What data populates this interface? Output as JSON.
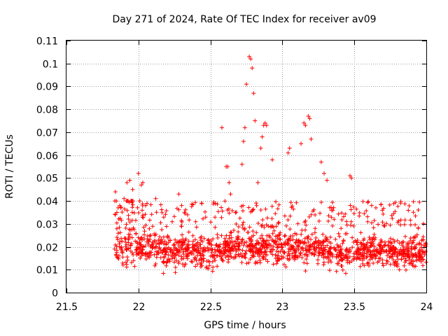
{
  "chart_data": {
    "type": "scatter",
    "title": "Day 271 of 2024, Rate Of TEC Index for receiver av09",
    "xlabel": "GPS time / hours",
    "ylabel": "ROTI / TECUs",
    "xlim": [
      21.5,
      24
    ],
    "ylim": [
      0,
      0.11
    ],
    "xticks": [
      21.5,
      22,
      22.5,
      23,
      23.5,
      24
    ],
    "xtick_labels": [
      "21.5",
      "22",
      "22.5",
      "23",
      "23.5",
      "24"
    ],
    "yticks": [
      0,
      0.01,
      0.02,
      0.03,
      0.04,
      0.05,
      0.06,
      0.07,
      0.08,
      0.09,
      0.1,
      0.11
    ],
    "ytick_labels": [
      "0",
      "0.01",
      "0.02",
      "0.03",
      "0.04",
      "0.05",
      "0.06",
      "0.07",
      "0.08",
      "0.09",
      "0.1",
      "0.11"
    ],
    "grid": true,
    "marker": "+",
    "marker_color": "#ff0000",
    "series": [
      {
        "name": "ROTI",
        "points_generated": {
          "description_values": "dense band of points between x 21.83 and 24, mostly 0.005-0.035",
          "x_start": 21.83,
          "x_end": 24.0,
          "count": 1600
        },
        "points": [
          [
            21.84,
            0.044
          ],
          [
            21.85,
            0.035
          ],
          [
            21.87,
            0.038
          ],
          [
            21.9,
            0.041
          ],
          [
            21.92,
            0.048
          ],
          [
            21.94,
            0.049
          ],
          [
            21.96,
            0.045
          ],
          [
            22.0,
            0.052
          ],
          [
            22.02,
            0.047
          ],
          [
            22.03,
            0.048
          ],
          [
            22.05,
            0.038
          ],
          [
            22.12,
            0.041
          ],
          [
            22.28,
            0.043
          ],
          [
            22.3,
            0.038
          ],
          [
            22.58,
            0.072
          ],
          [
            22.61,
            0.055
          ],
          [
            22.62,
            0.055
          ],
          [
            22.63,
            0.048
          ],
          [
            22.64,
            0.043
          ],
          [
            22.72,
            0.056
          ],
          [
            22.73,
            0.066
          ],
          [
            22.74,
            0.072
          ],
          [
            22.75,
            0.091
          ],
          [
            22.77,
            0.103
          ],
          [
            22.78,
            0.102
          ],
          [
            22.79,
            0.098
          ],
          [
            22.8,
            0.087
          ],
          [
            22.81,
            0.075
          ],
          [
            22.83,
            0.048
          ],
          [
            22.85,
            0.063
          ],
          [
            22.86,
            0.068
          ],
          [
            22.87,
            0.073
          ],
          [
            22.88,
            0.074
          ],
          [
            22.89,
            0.073
          ],
          [
            22.93,
            0.058
          ],
          [
            23.04,
            0.061
          ],
          [
            23.05,
            0.063
          ],
          [
            23.13,
            0.065
          ],
          [
            23.15,
            0.074
          ],
          [
            23.16,
            0.073
          ],
          [
            23.18,
            0.077
          ],
          [
            23.19,
            0.076
          ],
          [
            23.2,
            0.067
          ],
          [
            23.27,
            0.057
          ],
          [
            23.29,
            0.052
          ],
          [
            23.31,
            0.049
          ],
          [
            23.47,
            0.051
          ],
          [
            23.48,
            0.05
          ],
          [
            23.62,
            0.038
          ],
          [
            23.65,
            0.037
          ]
        ]
      }
    ]
  }
}
